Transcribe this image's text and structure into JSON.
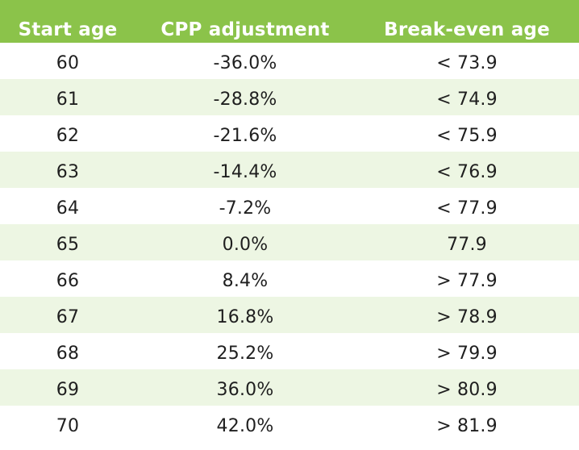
{
  "table": {
    "headers": [
      "Start age",
      "CPP adjustment",
      "Break-even age"
    ],
    "rows": [
      [
        "60",
        "-36.0%",
        "< 73.9"
      ],
      [
        "61",
        "-28.8%",
        "< 74.9"
      ],
      [
        "62",
        "-21.6%",
        "< 75.9"
      ],
      [
        "63",
        "-14.4%",
        "< 76.9"
      ],
      [
        "64",
        "-7.2%",
        "< 77.9"
      ],
      [
        "65",
        "0.0%",
        "77.9"
      ],
      [
        "66",
        "8.4%",
        "> 77.9"
      ],
      [
        "67",
        "16.8%",
        "> 78.9"
      ],
      [
        "68",
        "25.2%",
        "> 79.9"
      ],
      [
        "69",
        "36.0%",
        "> 80.9"
      ],
      [
        "70",
        "42.0%",
        "> 81.9"
      ]
    ]
  },
  "colors": {
    "header_bg": "#8bc34a",
    "header_text": "#ffffff",
    "stripe_bg": "#edf6e3",
    "row_bg": "#ffffff",
    "text": "#1f1f1f"
  }
}
